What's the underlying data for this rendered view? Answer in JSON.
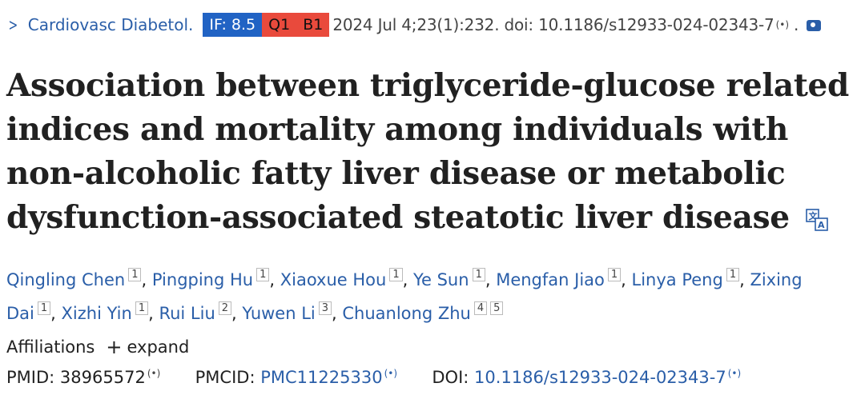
{
  "citation": {
    "journal": "Cardiovasc Diabetol.",
    "if_badge": "IF: 8.5",
    "q_badge": "Q1",
    "b_badge": "B1",
    "text": "2024 Jul 4;23(1):232. doi: 10.1186/s12933-024-02343-7",
    "end_dot": ".",
    "colors": {
      "if": "#2163c4",
      "q": "#e94a3c",
      "link": "#2a5ea8"
    }
  },
  "title": "Association between triglyceride-glucose related indices and mortality among individuals with non-alcoholic fatty liver disease or metabolic dysfunction-associated steatotic liver disease",
  "authors": [
    {
      "name": "Qingling Chen",
      "aff": "1"
    },
    {
      "name": "Pingping Hu",
      "aff": "1"
    },
    {
      "name": "Xiaoxue Hou",
      "aff": "1"
    },
    {
      "name": "Ye Sun",
      "aff": "1"
    },
    {
      "name": "Mengfan Jiao",
      "aff": "1"
    },
    {
      "name": "Linya Peng",
      "aff": "1"
    },
    {
      "name": "Zixing Dai",
      "aff": "1"
    },
    {
      "name": "Xizhi Yin",
      "aff": "1"
    },
    {
      "name": "Rui Liu",
      "aff": "2"
    },
    {
      "name": "Yuwen Li",
      "aff": "3"
    },
    {
      "name": "Chuanlong Zhu",
      "aff": "4 5"
    }
  ],
  "affiliations": {
    "label": "Affiliations",
    "expand": "expand"
  },
  "ids": {
    "pmid_label": "PMID:",
    "pmid": "38965572",
    "pmcid_label": "PMCID:",
    "pmcid": "PMC11225330",
    "doi_label": "DOI:",
    "doi": "10.1186/s12933-024-02343-7"
  }
}
